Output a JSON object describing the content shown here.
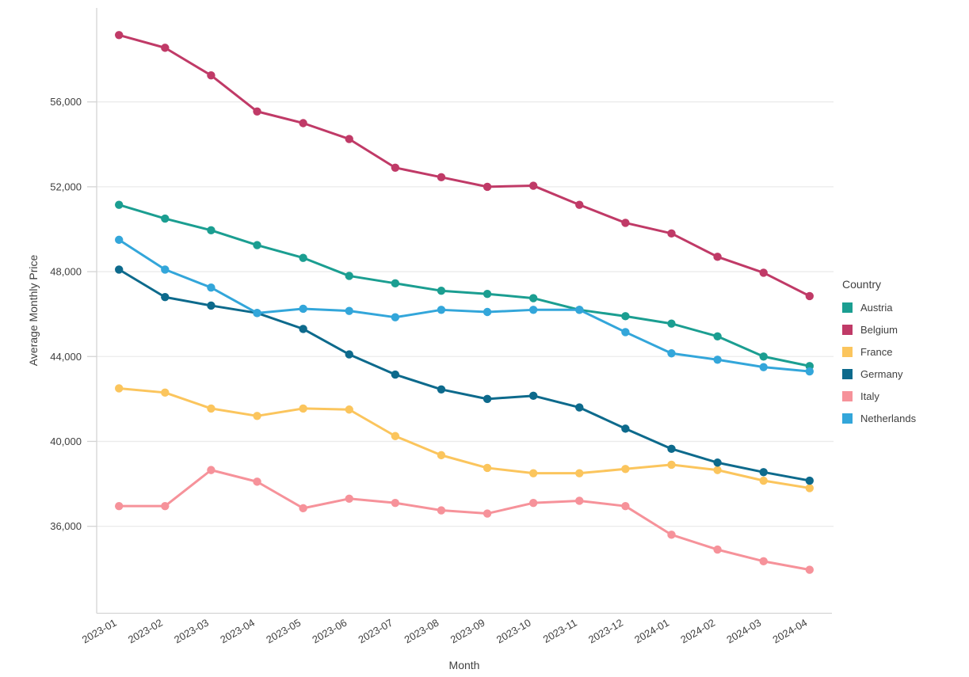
{
  "chart_data": {
    "type": "line",
    "title": "",
    "xlabel": "Month",
    "ylabel": "Average Monthly Price",
    "legend_title": "Country",
    "legend_position": "right",
    "grid": "horizontal",
    "ylim": [
      31900,
      60430
    ],
    "y_ticks": [
      36000,
      40000,
      44000,
      48000,
      52000,
      56000
    ],
    "y_tick_labels": [
      "36,000",
      "40,000",
      "44,000",
      "48,000",
      "52,000",
      "56,000"
    ],
    "categories": [
      "2023-01",
      "2023-02",
      "2023-03",
      "2023-04",
      "2023-05",
      "2023-06",
      "2023-07",
      "2023-08",
      "2023-09",
      "2023-10",
      "2023-11",
      "2023-12",
      "2024-01",
      "2024-02",
      "2024-03",
      "2024-04"
    ],
    "series": [
      {
        "name": "Austria",
        "color": "#1B9E91",
        "values": [
          51150,
          50500,
          49950,
          49250,
          48650,
          47800,
          47450,
          47100,
          46950,
          46750,
          46200,
          45900,
          45550,
          44950,
          44000,
          43550
        ]
      },
      {
        "name": "Belgium",
        "color": "#C03A67",
        "values": [
          59150,
          58550,
          57250,
          55550,
          55000,
          54250,
          52900,
          52450,
          52000,
          52050,
          51150,
          50300,
          49800,
          48700,
          47950,
          46850
        ]
      },
      {
        "name": "France",
        "color": "#FBC55D",
        "values": [
          42500,
          42300,
          41550,
          41200,
          41550,
          41500,
          40250,
          39350,
          38750,
          38500,
          38500,
          38700,
          38900,
          38650,
          38150,
          37800
        ]
      },
      {
        "name": "Germany",
        "color": "#0D6A8C",
        "values": [
          48100,
          46800,
          46400,
          46050,
          45300,
          44100,
          43150,
          42450,
          42000,
          42150,
          41600,
          40600,
          39650,
          39000,
          38550,
          38150
        ]
      },
      {
        "name": "Italy",
        "color": "#F6929A",
        "values": [
          36950,
          36950,
          38650,
          38100,
          36850,
          37300,
          37100,
          36750,
          36600,
          37100,
          37200,
          36950,
          35600,
          34900,
          34350,
          33950
        ]
      },
      {
        "name": "Netherlands",
        "color": "#33A6DA",
        "values": [
          49500,
          48100,
          47250,
          46050,
          46250,
          46150,
          45850,
          46200,
          46100,
          46200,
          46200,
          45150,
          44150,
          43850,
          43500,
          43300
        ]
      }
    ],
    "colors": {
      "gridline": "#ebebeb",
      "axis_line": "#d4d4d4",
      "tick_text": "#3f3f3f",
      "background": "#ffffff"
    }
  }
}
